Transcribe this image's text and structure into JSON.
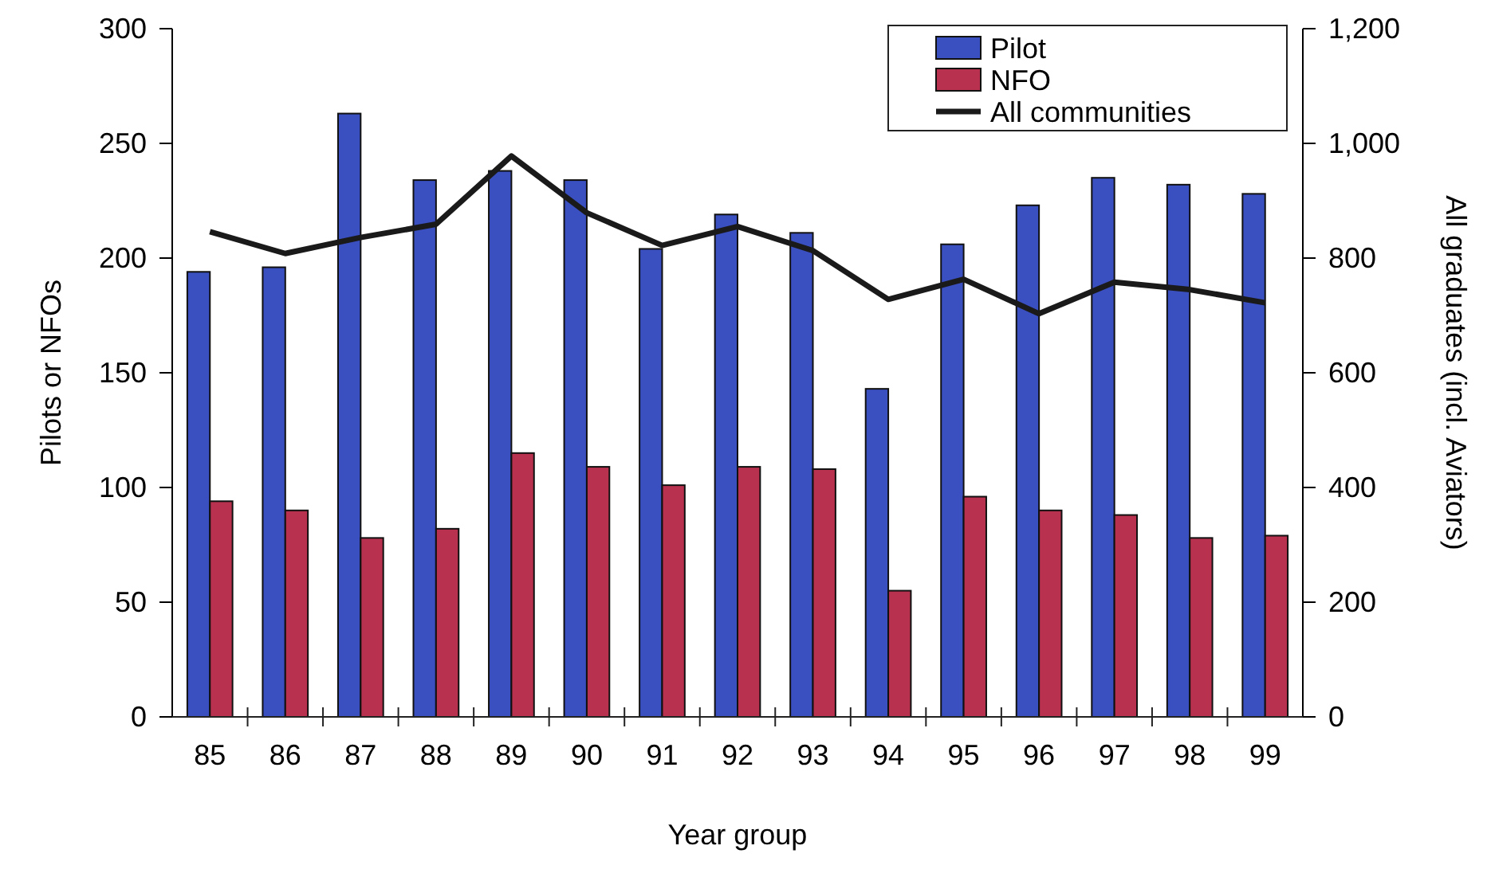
{
  "chart_data": {
    "type": "bar",
    "xlabel": "Year group",
    "ylabel": "Pilots or NFOs",
    "y2label": "All graduates (incl. Aviators)",
    "categories": [
      "85",
      "86",
      "87",
      "88",
      "89",
      "90",
      "91",
      "92",
      "93",
      "94",
      "95",
      "96",
      "97",
      "98",
      "99"
    ],
    "series": [
      {
        "name": "Pilot",
        "color": "#3a4fc0",
        "values": [
          194,
          196,
          263,
          234,
          238,
          234,
          204,
          219,
          211,
          143,
          206,
          223,
          235,
          232,
          228
        ]
      },
      {
        "name": "NFO",
        "color": "#b8314e",
        "values": [
          94,
          90,
          78,
          82,
          115,
          109,
          101,
          109,
          108,
          55,
          96,
          90,
          88,
          78,
          79
        ]
      },
      {
        "name": "All communities",
        "type": "line",
        "axis": "y2",
        "color": "#1a1a1a",
        "values": [
          846,
          808,
          836,
          859,
          978,
          879,
          822,
          855,
          813,
          728,
          763,
          703,
          758,
          745,
          722
        ]
      }
    ],
    "ylim": [
      0,
      300
    ],
    "yticks": [
      0,
      50,
      100,
      150,
      200,
      250,
      300
    ],
    "y2lim": [
      0,
      1200
    ],
    "y2ticks": [
      0,
      200,
      400,
      600,
      800,
      {
        "value": 1000,
        "label": "1,000"
      },
      {
        "value": 1200,
        "label": "1,200"
      }
    ],
    "grid": false,
    "legend": "top right",
    "marker": "none",
    "line_style": "solid"
  }
}
